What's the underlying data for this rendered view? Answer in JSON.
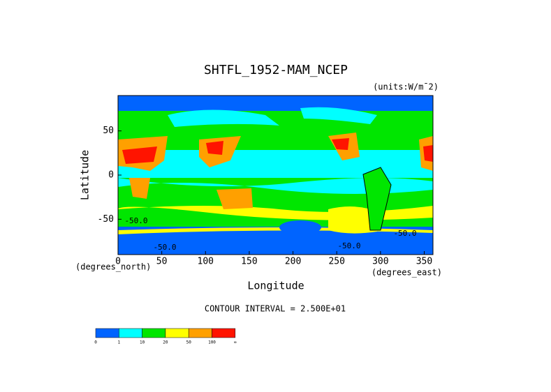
{
  "chart_data": {
    "type": "contour-map",
    "title": "SHTFL_1952-MAM_NCEP",
    "units": "(units:W/m¯2)",
    "y_label": "Latitude",
    "x_label": "Longitude",
    "y_unit": "(degrees_north)",
    "x_unit": "(degrees_east)",
    "contour_interval": "CONTOUR INTERVAL = 2.500E+01",
    "contour_labels": [
      "-50.0",
      "-50.0",
      "-50.0",
      "-50.0"
    ],
    "xlim": [
      0,
      360
    ],
    "ylim": [
      -90,
      90
    ],
    "xticks": [
      0,
      50,
      100,
      150,
      200,
      250,
      300,
      350
    ],
    "yticks": [
      -50,
      0,
      50
    ],
    "colorbar": {
      "labels": [
        "0",
        "1",
        "10",
        "20",
        "50",
        "100",
        "∞"
      ],
      "colors": [
        "#0064ff",
        "#00ffff",
        "#00e600",
        "#ffff00",
        "#ffa000",
        "#ff1400"
      ]
    }
  }
}
